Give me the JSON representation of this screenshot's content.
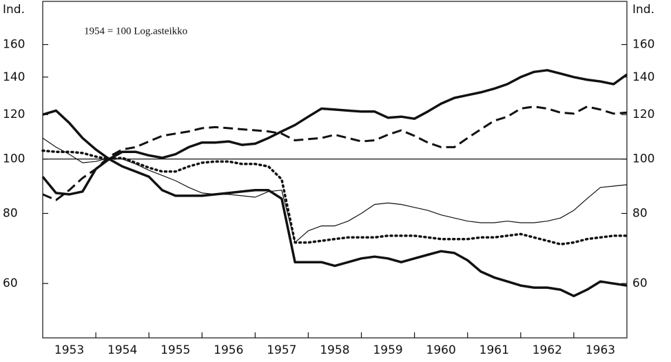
{
  "chart_data": {
    "type": "line",
    "annotation": "1954 = 100 Log.asteikko",
    "ylabel": "Ind.",
    "y2label": "Ind.",
    "log_scale": true,
    "ylim": [
      48,
      191
    ],
    "yticks": [
      60,
      80,
      100,
      120,
      140,
      160
    ],
    "reference_line": 100,
    "xlim": [
      1953,
      1964
    ],
    "xticks": [
      {
        "value": 1953.5,
        "label": "1953"
      },
      {
        "value": 1954.5,
        "label": "1954"
      },
      {
        "value": 1955.5,
        "label": "1955"
      },
      {
        "value": 1956.5,
        "label": "1956"
      },
      {
        "value": 1957.5,
        "label": "1957"
      },
      {
        "value": 1958.5,
        "label": "1958"
      },
      {
        "value": 1959.5,
        "label": "1959"
      },
      {
        "value": 1960.5,
        "label": "1960"
      },
      {
        "value": 1961.5,
        "label": "1961"
      },
      {
        "value": 1962.5,
        "label": "1962"
      },
      {
        "value": 1963.5,
        "label": "1963"
      }
    ],
    "x": [
      1953,
      1953.25,
      1953.5,
      1953.75,
      1954,
      1954.25,
      1954.5,
      1954.75,
      1955,
      1955.25,
      1955.5,
      1955.75,
      1956,
      1956.25,
      1956.5,
      1956.75,
      1957,
      1957.25,
      1957.5,
      1957.75,
      1958,
      1958.25,
      1958.5,
      1958.75,
      1959,
      1959.25,
      1959.5,
      1959.75,
      1960,
      1960.25,
      1960.5,
      1960.75,
      1961,
      1961.25,
      1961.5,
      1961.75,
      1962,
      1962.25,
      1962.5,
      1962.75,
      1963,
      1963.25,
      1963.5,
      1963.75,
      1964
    ],
    "series": [
      {
        "color": "#111",
        "linewidth": 3.5,
        "linestyle": "solid",
        "values": [
          120,
          122,
          116,
          109,
          104,
          100,
          97,
          95,
          93,
          88,
          86,
          86,
          86,
          86.5,
          87,
          87.5,
          88,
          88,
          85,
          65.5,
          65.5,
          65.5,
          64.5,
          65.5,
          66.5,
          67,
          66.5,
          65.5,
          66.5,
          67.5,
          68.5,
          68,
          66,
          63,
          61.5,
          60.5,
          59.5,
          59,
          59,
          58.5,
          57,
          58.5,
          60.5,
          60,
          59.5
        ]
      },
      {
        "color": "#111",
        "linewidth": 3.5,
        "linestyle": "solid",
        "values": [
          93,
          87,
          86.5,
          87.5,
          96,
          100,
          103,
          103,
          101.5,
          100.5,
          102,
          105,
          107,
          107,
          107.5,
          106,
          106.5,
          109,
          112,
          115,
          119,
          123,
          122.5,
          122,
          121.5,
          121.5,
          118.5,
          119,
          118,
          121.5,
          125.5,
          128.5,
          130,
          131.5,
          133.5,
          136,
          140,
          143,
          144,
          142,
          140,
          138.5,
          137.5,
          136,
          141.5
        ]
      },
      {
        "color": "#111",
        "linewidth": 3,
        "linestyle": "dashed",
        "values": [
          86.5,
          84.5,
          88,
          92.5,
          96,
          101,
          104,
          105,
          107.5,
          110,
          111,
          112,
          113.5,
          114,
          113.5,
          113,
          112.5,
          112,
          111,
          108,
          108.5,
          109,
          110.5,
          109,
          107.5,
          108,
          110.5,
          112.5,
          110,
          107,
          105,
          105,
          109,
          113,
          117,
          119,
          123,
          124,
          123,
          121,
          120.5,
          124,
          122.5,
          120.5,
          121
        ]
      },
      {
        "color": "#111",
        "linewidth": 3.5,
        "linestyle": "dotted",
        "values": [
          103.5,
          103,
          103,
          102.5,
          101,
          100,
          100.5,
          98.5,
          96.5,
          95,
          95,
          97,
          98.5,
          99,
          99,
          98,
          98,
          97,
          92,
          71,
          71,
          71.5,
          72,
          72.5,
          72.5,
          72.5,
          73,
          73,
          73,
          72.5,
          72,
          72,
          72,
          72.5,
          72.5,
          73,
          73.5,
          72.5,
          71.5,
          70.5,
          71,
          72,
          72.5,
          73,
          73
        ]
      },
      {
        "color": "#111",
        "linewidth": 1.2,
        "linestyle": "solid",
        "values": [
          109,
          105,
          102,
          98.5,
          99,
          100.5,
          100,
          98,
          95.5,
          93.5,
          91.5,
          89,
          87,
          86.5,
          86.5,
          86,
          85.5,
          87.5,
          88,
          71,
          74.5,
          76,
          76,
          77.5,
          80,
          83,
          83.5,
          83,
          82,
          81,
          79.5,
          78.5,
          77.5,
          77,
          77,
          77.5,
          77,
          77,
          77.5,
          78.5,
          81,
          85,
          89,
          89.5,
          90
        ]
      }
    ]
  }
}
